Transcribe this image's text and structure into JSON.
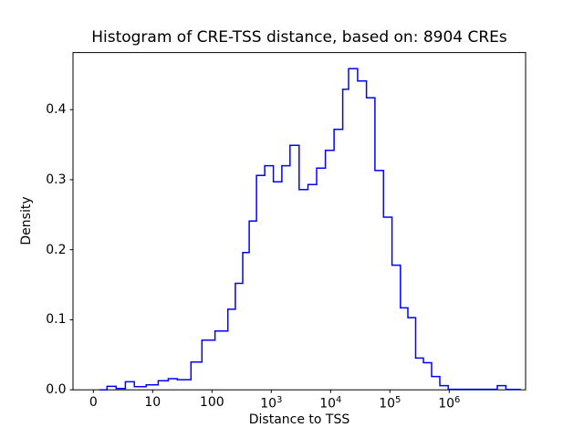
{
  "figure": {
    "background": "#ffffff"
  },
  "chart_data": {
    "type": "histogram",
    "title": "Histogram of CRE-TSS distance, based on: 8904 CREs",
    "xlabel": "Distance to TSS",
    "ylabel": "Density",
    "line_color": "#0000ff",
    "axis": {
      "x_scale": "symlog",
      "x_linthresh": 10,
      "ylim": [
        0,
        0.4815
      ],
      "grid": false,
      "legend": "none"
    },
    "x_ticks": [
      {
        "value": 0,
        "label": "0"
      },
      {
        "value": 10,
        "label": "10"
      },
      {
        "value": 100,
        "label": "100"
      },
      {
        "value": 1000,
        "label": "10",
        "exp": "3"
      },
      {
        "value": 10000,
        "label": "10",
        "exp": "4"
      },
      {
        "value": 100000,
        "label": "10",
        "exp": "5"
      },
      {
        "value": 1000000,
        "label": "10",
        "exp": "6"
      }
    ],
    "y_ticks": [
      {
        "value": 0.0,
        "label": "0.0"
      },
      {
        "value": 0.1,
        "label": "0.1"
      },
      {
        "value": 0.2,
        "label": "0.2"
      },
      {
        "value": 0.3,
        "label": "0.3"
      },
      {
        "value": 0.4,
        "label": "0.4"
      }
    ],
    "bins": {
      "edges": [
        1,
        2.3,
        3.85,
        5.4,
        6.9,
        8.9,
        12.4,
        18.3,
        26,
        44.3,
        67.7,
        112.5,
        185,
        248,
        330,
        425,
        563,
        775,
        1085,
        1510,
        2070,
        2950,
        4150,
        5810,
        8170,
        11430,
        16000,
        20100,
        28500,
        40200,
        55900,
        78000,
        108400,
        150200,
        201000,
        272000,
        367000,
        505000,
        695000,
        962000,
        6470000,
        9020000,
        15700000
      ],
      "densities": [
        0,
        0.005,
        0.002,
        0.0115,
        0.0046,
        0.0072,
        0.0129,
        0.0159,
        0.0145,
        0.0397,
        0.071,
        0.084,
        0.115,
        0.152,
        0.196,
        0.241,
        0.306,
        0.32,
        0.297,
        0.32,
        0.349,
        0.286,
        0.293,
        0.3165,
        0.342,
        0.372,
        0.429,
        0.4586,
        0.441,
        0.417,
        0.313,
        0.2465,
        0.178,
        0.117,
        0.103,
        0.0453,
        0.0387,
        0.019,
        0.006,
        0.0008,
        0.006,
        0.0005
      ]
    }
  }
}
